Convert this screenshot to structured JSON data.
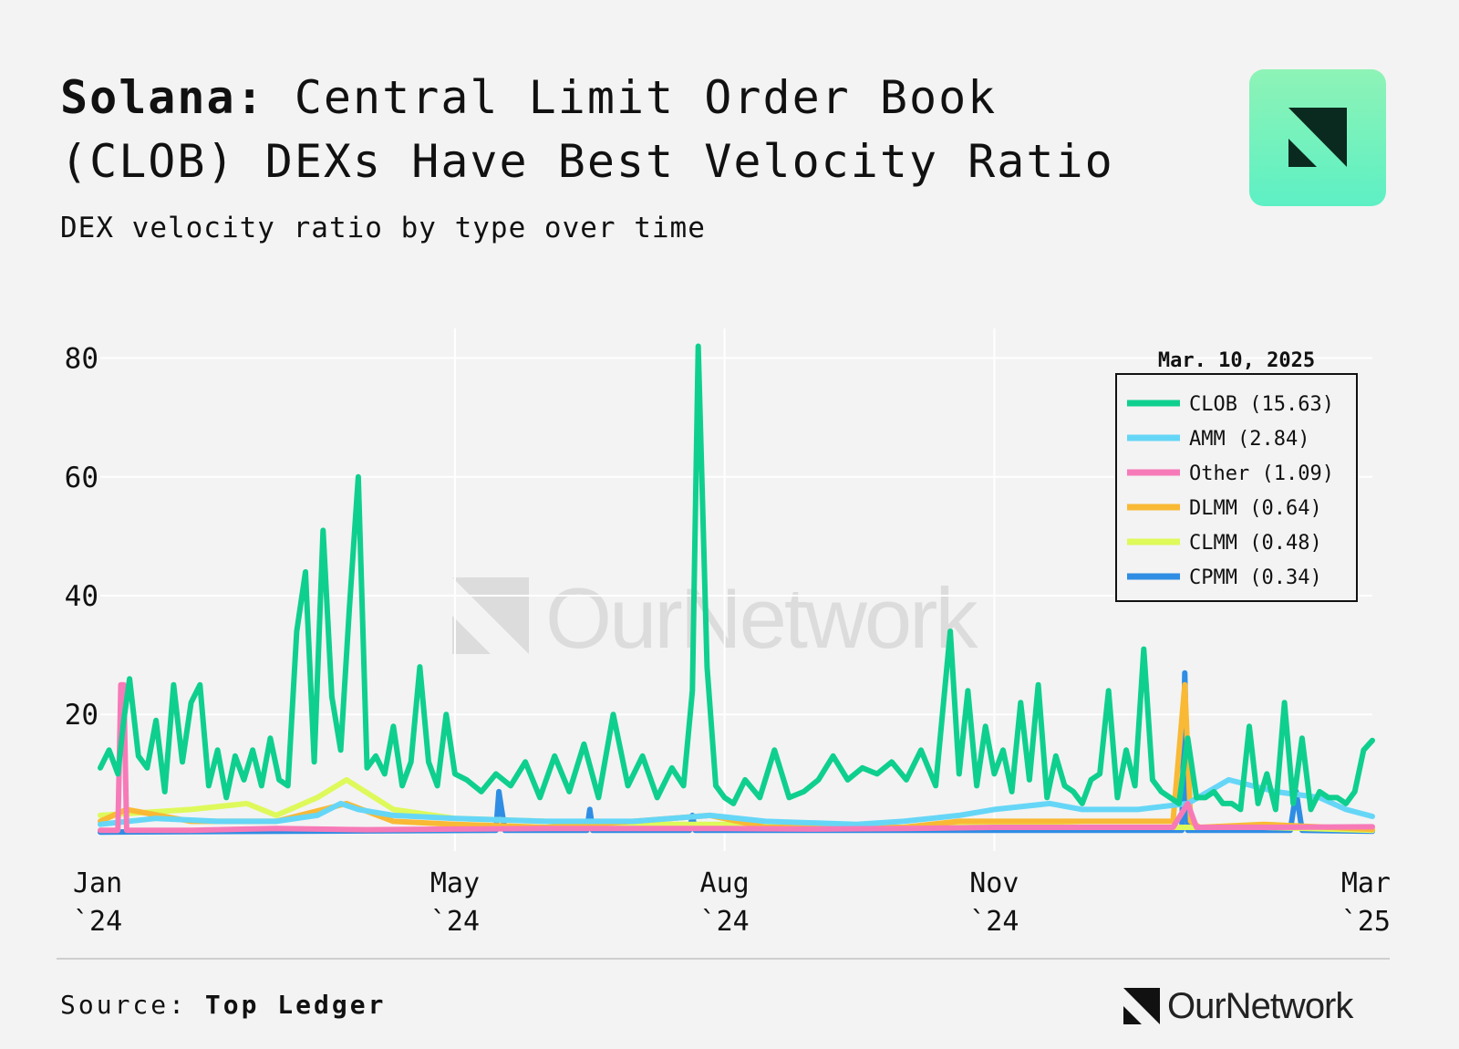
{
  "header": {
    "title_bold": "Solana:",
    "title_rest": " Central Limit Order Book (CLOB) DEXs Have Best Velocity Ratio",
    "subtitle": "DEX velocity ratio by type over time"
  },
  "source": {
    "label": "Source:",
    "value": "Top Ledger"
  },
  "brand": {
    "name": "OurNetwork"
  },
  "colors": {
    "background": "#f3f3f3",
    "grid": "#ffffff",
    "CLOB": "#0fcf8f",
    "AMM": "#66d6f7",
    "Other": "#f77ab8",
    "DLMM": "#f9b935",
    "CLMM": "#def95a",
    "CPMM": "#2f8de4"
  },
  "chart_data": {
    "type": "line",
    "ylim": [
      -3,
      85
    ],
    "yticks": [
      20,
      40,
      60,
      80
    ],
    "ytick_labels": [
      "20",
      "40",
      "60",
      "80"
    ],
    "xlim": [
      "2024-01-01",
      "2025-03-10"
    ],
    "xticks": [
      "2024-01-01",
      "2024-05-01",
      "2024-08-01",
      "2024-11-01",
      "2025-03-01"
    ],
    "xtick_labels": [
      [
        "Jan",
        "`24"
      ],
      [
        "May",
        "`24"
      ],
      [
        "Aug",
        "`24"
      ],
      [
        "Nov",
        "`24"
      ],
      [
        "Mar",
        "`25"
      ]
    ],
    "grid": true,
    "legend_title": "Mar. 10, 2025",
    "legend_position": "top-right",
    "series": [
      {
        "name": "CLOB",
        "label": "CLOB (15.63)",
        "color": "#0fcf8f",
        "dates": [
          "2024-01-01",
          "2024-01-04",
          "2024-01-07",
          "2024-01-09",
          "2024-01-11",
          "2024-01-14",
          "2024-01-17",
          "2024-01-20",
          "2024-01-23",
          "2024-01-26",
          "2024-01-29",
          "2024-02-01",
          "2024-02-04",
          "2024-02-07",
          "2024-02-10",
          "2024-02-13",
          "2024-02-16",
          "2024-02-19",
          "2024-02-22",
          "2024-02-25",
          "2024-02-28",
          "2024-03-02",
          "2024-03-05",
          "2024-03-08",
          "2024-03-11",
          "2024-03-14",
          "2024-03-17",
          "2024-03-20",
          "2024-03-23",
          "2024-03-26",
          "2024-03-29",
          "2024-04-01",
          "2024-04-04",
          "2024-04-07",
          "2024-04-10",
          "2024-04-13",
          "2024-04-16",
          "2024-04-19",
          "2024-04-22",
          "2024-04-25",
          "2024-04-28",
          "2024-05-01",
          "2024-05-05",
          "2024-05-10",
          "2024-05-15",
          "2024-05-20",
          "2024-05-25",
          "2024-05-30",
          "2024-06-04",
          "2024-06-09",
          "2024-06-14",
          "2024-06-19",
          "2024-06-24",
          "2024-06-29",
          "2024-07-04",
          "2024-07-09",
          "2024-07-14",
          "2024-07-18",
          "2024-07-21",
          "2024-07-23",
          "2024-07-26",
          "2024-07-29",
          "2024-08-01",
          "2024-08-04",
          "2024-08-08",
          "2024-08-13",
          "2024-08-18",
          "2024-08-23",
          "2024-08-28",
          "2024-09-02",
          "2024-09-07",
          "2024-09-12",
          "2024-09-17",
          "2024-09-22",
          "2024-09-27",
          "2024-10-02",
          "2024-10-07",
          "2024-10-12",
          "2024-10-17",
          "2024-10-20",
          "2024-10-23",
          "2024-10-26",
          "2024-10-29",
          "2024-11-01",
          "2024-11-04",
          "2024-11-07",
          "2024-11-10",
          "2024-11-13",
          "2024-11-16",
          "2024-11-19",
          "2024-11-22",
          "2024-11-25",
          "2024-11-28",
          "2024-12-01",
          "2024-12-04",
          "2024-12-07",
          "2024-12-10",
          "2024-12-13",
          "2024-12-16",
          "2024-12-19",
          "2024-12-22",
          "2024-12-25",
          "2024-12-28",
          "2024-12-31",
          "2025-01-03",
          "2025-01-06",
          "2025-01-09",
          "2025-01-12",
          "2025-01-15",
          "2025-01-18",
          "2025-01-21",
          "2025-01-24",
          "2025-01-27",
          "2025-01-30",
          "2025-02-02",
          "2025-02-05",
          "2025-02-08",
          "2025-02-11",
          "2025-02-14",
          "2025-02-17",
          "2025-02-20",
          "2025-02-23",
          "2025-02-26",
          "2025-03-01",
          "2025-03-04",
          "2025-03-07",
          "2025-03-10"
        ],
        "values": [
          11,
          14,
          10,
          19,
          26,
          13,
          11,
          19,
          7,
          25,
          12,
          22,
          25,
          8,
          14,
          6,
          13,
          9,
          14,
          8,
          16,
          9,
          8,
          34,
          44,
          12,
          51,
          23,
          14,
          38,
          60,
          11,
          13,
          10,
          18,
          8,
          12,
          28,
          12,
          8,
          20,
          10,
          9,
          7,
          10,
          8,
          12,
          6,
          13,
          7,
          15,
          6,
          20,
          8,
          13,
          6,
          11,
          8,
          24,
          82,
          28,
          8,
          6,
          5,
          9,
          6,
          14,
          6,
          7,
          9,
          13,
          9,
          11,
          10,
          12,
          9,
          14,
          8,
          34,
          10,
          24,
          8,
          18,
          10,
          14,
          7,
          22,
          9,
          25,
          6,
          13,
          8,
          7,
          5,
          9,
          10,
          24,
          6,
          14,
          8,
          31,
          9,
          7,
          6,
          5,
          16,
          6,
          6,
          7,
          5,
          5,
          4,
          18,
          5,
          10,
          4,
          22,
          5,
          16,
          4,
          7,
          6,
          6,
          5,
          7,
          14,
          15.63
        ]
      },
      {
        "name": "AMM",
        "label": "AMM (2.84)",
        "color": "#66d6f7",
        "dates": [
          "2024-01-01",
          "2024-01-20",
          "2024-02-10",
          "2024-03-01",
          "2024-03-15",
          "2024-03-23",
          "2024-03-29",
          "2024-04-10",
          "2024-05-01",
          "2024-06-01",
          "2024-07-01",
          "2024-07-27",
          "2024-08-15",
          "2024-09-15",
          "2024-10-01",
          "2024-10-20",
          "2024-11-01",
          "2024-11-20",
          "2024-12-01",
          "2024-12-20",
          "2025-01-06",
          "2025-01-20",
          "2025-02-05",
          "2025-02-20",
          "2025-03-01",
          "2025-03-10"
        ],
        "values": [
          1.5,
          2.5,
          2,
          2,
          3,
          5,
          4,
          3,
          2.5,
          2,
          2,
          3,
          2,
          1.5,
          2,
          3,
          4,
          5,
          4,
          4,
          5,
          9,
          7,
          6,
          4,
          2.84
        ]
      },
      {
        "name": "Other",
        "label": "Other (1.09)",
        "color": "#f77ab8",
        "dates": [
          "2024-01-01",
          "2024-01-07",
          "2024-01-08",
          "2024-01-09",
          "2024-01-10",
          "2024-02-01",
          "2024-03-01",
          "2024-04-01",
          "2024-05-01",
          "2024-06-01",
          "2024-07-01",
          "2024-08-01",
          "2024-09-01",
          "2024-10-01",
          "2024-11-01",
          "2024-12-01",
          "2025-01-01",
          "2025-01-06",
          "2025-01-09",
          "2025-02-01",
          "2025-03-10"
        ],
        "values": [
          0.5,
          0.5,
          25,
          25,
          0.5,
          0.5,
          0.8,
          0.6,
          0.7,
          0.8,
          0.8,
          0.8,
          0.7,
          0.8,
          1,
          1,
          1,
          5,
          1,
          1,
          1.09
        ]
      },
      {
        "name": "DLMM",
        "label": "DLMM (0.64)",
        "color": "#f9b935",
        "dates": [
          "2024-01-01",
          "2024-01-10",
          "2024-02-01",
          "2024-03-01",
          "2024-03-25",
          "2024-04-10",
          "2024-05-01",
          "2024-06-01",
          "2024-07-01",
          "2024-07-27",
          "2024-08-15",
          "2024-10-01",
          "2024-10-20",
          "2024-11-01",
          "2024-12-01",
          "2025-01-01",
          "2025-01-05",
          "2025-01-07",
          "2025-01-10",
          "2025-02-01",
          "2025-03-10"
        ],
        "values": [
          2,
          4,
          2,
          2,
          5,
          2,
          1.5,
          1,
          2,
          3,
          1,
          1,
          2,
          2,
          2,
          2,
          25,
          2,
          1,
          1.5,
          0.64
        ]
      },
      {
        "name": "CLMM",
        "label": "CLMM (0.48)",
        "color": "#def95a",
        "dates": [
          "2024-01-01",
          "2024-02-01",
          "2024-02-20",
          "2024-03-01",
          "2024-03-15",
          "2024-03-25",
          "2024-04-10",
          "2024-05-01",
          "2024-06-01",
          "2024-07-01",
          "2024-08-01",
          "2024-09-01",
          "2024-10-01",
          "2024-11-01",
          "2024-12-01",
          "2025-01-01",
          "2025-02-01",
          "2025-03-10"
        ],
        "values": [
          3,
          4,
          5,
          3,
          6,
          9,
          4,
          2.5,
          2,
          1.5,
          1.5,
          1,
          1,
          1.5,
          1,
          1,
          1,
          0.48
        ]
      },
      {
        "name": "CPMM",
        "label": "CPMM (0.34)",
        "color": "#2f8de4",
        "dates": [
          "2024-01-01",
          "2024-05-15",
          "2024-05-16",
          "2024-05-18",
          "2024-06-01",
          "2024-06-15",
          "2024-06-16",
          "2024-06-17",
          "2024-07-20",
          "2024-07-21",
          "2024-07-22",
          "2024-10-01",
          "2025-01-04",
          "2025-01-05",
          "2025-01-06",
          "2025-02-10",
          "2025-02-12",
          "2025-02-14",
          "2025-03-10"
        ],
        "values": [
          0.2,
          0.5,
          7,
          0.5,
          0.5,
          0.5,
          4,
          0.5,
          0.5,
          3,
          0.5,
          0.5,
          0.5,
          27,
          0.5,
          0.5,
          7,
          0.5,
          0.34
        ]
      }
    ]
  }
}
